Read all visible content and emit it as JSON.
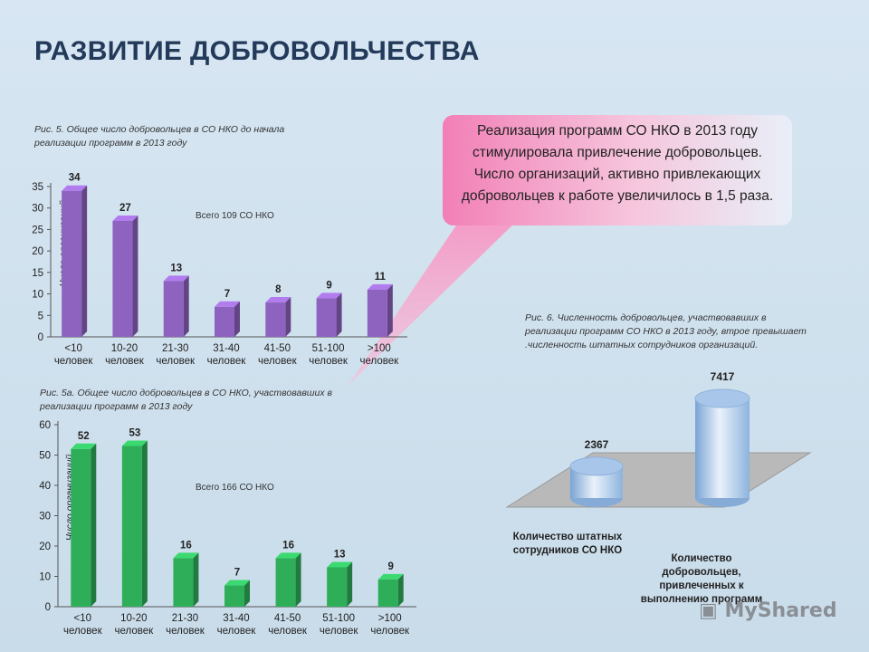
{
  "title": "РАЗВИТИЕ ДОБРОВОЛЬЧЕСТВА",
  "callout": {
    "text": "Реализация программ СО НКО в 2013 году стимулировала привлечение добровольцев. Число организаций, активно привлекающих добровольцев к работе увеличилось в 1,5 раза."
  },
  "watermark": "MyShared",
  "colors": {
    "chart1_bar": "#8e63bf",
    "chart2_bar": "#2fae5a",
    "cylinder": "#9cc0e6",
    "callout_pink": "#f27fb6"
  },
  "chart_data": [
    {
      "type": "bar",
      "title": "Рис. 5. Общее число добровольцев в СО НКО до начала реализации программ в 2013 году",
      "ylabel": "Число организаций",
      "annotation": "Всего 109 СО НКО",
      "categories": [
        [
          "<10",
          "человек"
        ],
        [
          "10-20",
          "человек"
        ],
        [
          "21-30",
          "человек"
        ],
        [
          "31-40",
          "человек"
        ],
        [
          "41-50",
          "человек"
        ],
        [
          "51-100",
          "человек"
        ],
        [
          ">100",
          "человек"
        ]
      ],
      "values": [
        34,
        27,
        13,
        7,
        8,
        9,
        11
      ],
      "ylim": [
        0,
        35
      ],
      "yticks": [
        0,
        5,
        10,
        15,
        20,
        25,
        30,
        35
      ]
    },
    {
      "type": "bar",
      "title": "Рис. 5а. Общее число добровольцев в СО НКО, участвовавших в реализации программ в 2013 году",
      "ylabel": "Число организаций",
      "annotation": "Всего 166 СО НКО",
      "categories": [
        [
          "<10",
          "человек"
        ],
        [
          "10-20",
          "человек"
        ],
        [
          "21-30",
          "человек"
        ],
        [
          "31-40",
          "человек"
        ],
        [
          "41-50",
          "человек"
        ],
        [
          "51-100",
          "человек"
        ],
        [
          ">100",
          "человек"
        ]
      ],
      "values": [
        52,
        53,
        16,
        7,
        16,
        13,
        9
      ],
      "ylim": [
        0,
        60
      ],
      "yticks": [
        0,
        10,
        20,
        30,
        40,
        50,
        60
      ]
    },
    {
      "type": "bar",
      "title": "Рис. 6. Численность добровольцев, участвовавших в реализации программ СО НКО в 2013 году, втрое превышает .численность штатных сотрудников организаций.",
      "categories": [
        "Количество штатных сотрудников СО НКО",
        "Количество добровольцев, привлеченных к выполнению программ"
      ],
      "values": [
        2367,
        7417
      ]
    }
  ]
}
